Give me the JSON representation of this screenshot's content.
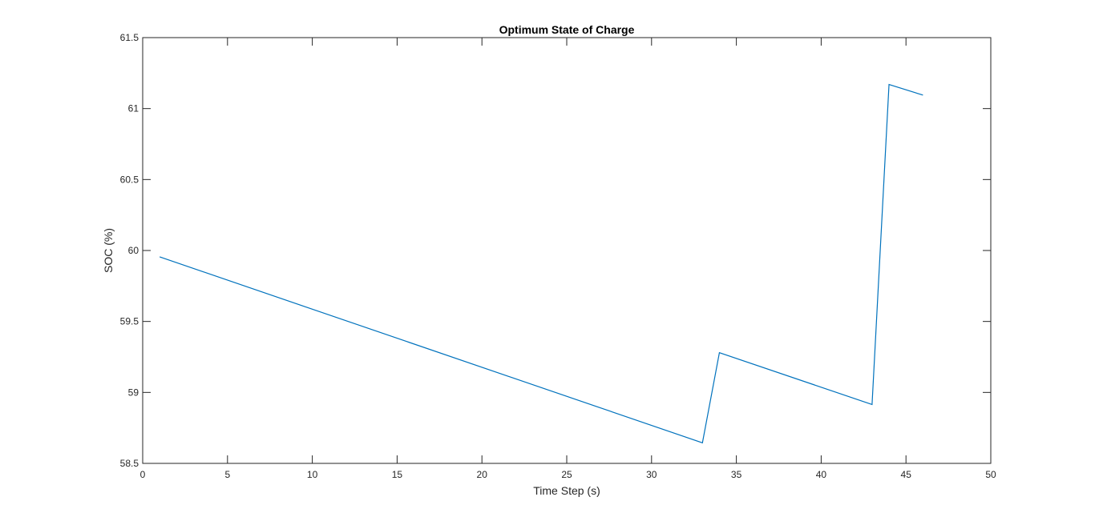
{
  "chart_data": {
    "type": "line",
    "title": "Optimum State of Charge",
    "xlabel": "Time Step (s)",
    "ylabel": "SOC (%)",
    "xlim": [
      0,
      50
    ],
    "ylim": [
      58.5,
      61.5
    ],
    "xticks": [
      0,
      5,
      10,
      15,
      20,
      25,
      30,
      35,
      40,
      45,
      50
    ],
    "yticks": [
      58.5,
      59,
      59.5,
      60,
      60.5,
      61,
      61.5
    ],
    "grid": false,
    "series": [
      {
        "color": "#0072BD",
        "x": [
          1,
          33,
          34,
          43,
          44,
          46
        ],
        "y": [
          59.955,
          58.645,
          59.28,
          58.915,
          61.17,
          61.095
        ]
      }
    ]
  }
}
